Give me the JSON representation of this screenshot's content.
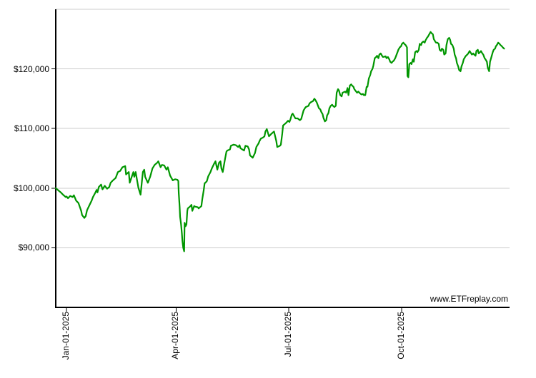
{
  "watermark": "www.ETFreplay.com",
  "chart_data": {
    "type": "line",
    "title": "",
    "xlabel": "",
    "ylabel": "",
    "x_unit": "t = fraction across time axis (late Dec 2024 to late Dec 2025)",
    "y_range": [
      80000,
      130000
    ],
    "grid": true,
    "legend_position": "none",
    "line_color": "#009600",
    "grid_color": "#cccccc",
    "axis_color": "#000000",
    "background_color": "#ffffff",
    "x_ticks": [
      {
        "label": "Jan-01-2025",
        "t": 0.024
      },
      {
        "label": "Apr-01-2025",
        "t": 0.265
      },
      {
        "label": "Jul-01-2025",
        "t": 0.513
      },
      {
        "label": "Oct-01-2025",
        "t": 0.762
      }
    ],
    "y_ticks": [
      {
        "label": "$90,000",
        "value": 90000
      },
      {
        "label": "$100,000",
        "value": 100000
      },
      {
        "label": "$110,000",
        "value": 110000
      },
      {
        "label": "$120,000",
        "value": 120000
      }
    ],
    "points": [
      [
        0.0,
        100000
      ],
      [
        0.006,
        99600
      ],
      [
        0.011,
        99300
      ],
      [
        0.016,
        98900
      ],
      [
        0.022,
        98500
      ],
      [
        0.024,
        98600
      ],
      [
        0.027,
        98300
      ],
      [
        0.032,
        98700
      ],
      [
        0.037,
        98500
      ],
      [
        0.04,
        98800
      ],
      [
        0.045,
        97900
      ],
      [
        0.05,
        97500
      ],
      [
        0.056,
        96200
      ],
      [
        0.058,
        95500
      ],
      [
        0.063,
        95000
      ],
      [
        0.066,
        95300
      ],
      [
        0.069,
        96300
      ],
      [
        0.074,
        97100
      ],
      [
        0.079,
        97900
      ],
      [
        0.082,
        98500
      ],
      [
        0.087,
        99200
      ],
      [
        0.09,
        99700
      ],
      [
        0.092,
        99300
      ],
      [
        0.095,
        100200
      ],
      [
        0.1,
        100600
      ],
      [
        0.103,
        99800
      ],
      [
        0.108,
        100400
      ],
      [
        0.113,
        99900
      ],
      [
        0.118,
        100200
      ],
      [
        0.121,
        100900
      ],
      [
        0.126,
        101300
      ],
      [
        0.132,
        101700
      ],
      [
        0.137,
        102700
      ],
      [
        0.142,
        102900
      ],
      [
        0.147,
        103500
      ],
      [
        0.153,
        103700
      ],
      [
        0.155,
        102300
      ],
      [
        0.161,
        102700
      ],
      [
        0.163,
        100900
      ],
      [
        0.171,
        102700
      ],
      [
        0.173,
        101900
      ],
      [
        0.176,
        102700
      ],
      [
        0.182,
        100100
      ],
      [
        0.187,
        98900
      ],
      [
        0.192,
        102700
      ],
      [
        0.195,
        103100
      ],
      [
        0.197,
        101900
      ],
      [
        0.203,
        100900
      ],
      [
        0.208,
        101900
      ],
      [
        0.213,
        103300
      ],
      [
        0.218,
        103900
      ],
      [
        0.224,
        104300
      ],
      [
        0.226,
        104500
      ],
      [
        0.231,
        103500
      ],
      [
        0.234,
        103900
      ],
      [
        0.239,
        103800
      ],
      [
        0.244,
        103100
      ],
      [
        0.247,
        103500
      ],
      [
        0.252,
        102100
      ],
      [
        0.258,
        101300
      ],
      [
        0.263,
        101500
      ],
      [
        0.268,
        101400
      ],
      [
        0.27,
        101200
      ],
      [
        0.271,
        99200
      ],
      [
        0.273,
        96800
      ],
      [
        0.274,
        95200
      ],
      [
        0.276,
        94000
      ],
      [
        0.278,
        92400
      ],
      [
        0.279,
        91200
      ],
      [
        0.281,
        90000
      ],
      [
        0.283,
        89400
      ],
      [
        0.284,
        94200
      ],
      [
        0.286,
        93600
      ],
      [
        0.288,
        93900
      ],
      [
        0.29,
        96200
      ],
      [
        0.291,
        96600
      ],
      [
        0.294,
        96800
      ],
      [
        0.297,
        97000
      ],
      [
        0.299,
        97200
      ],
      [
        0.301,
        96200
      ],
      [
        0.305,
        97000
      ],
      [
        0.307,
        96900
      ],
      [
        0.313,
        96800
      ],
      [
        0.315,
        96600
      ],
      [
        0.321,
        97000
      ],
      [
        0.323,
        98200
      ],
      [
        0.326,
        99600
      ],
      [
        0.328,
        100800
      ],
      [
        0.331,
        101000
      ],
      [
        0.333,
        101200
      ],
      [
        0.336,
        102000
      ],
      [
        0.341,
        102700
      ],
      [
        0.344,
        103300
      ],
      [
        0.349,
        104100
      ],
      [
        0.352,
        104500
      ],
      [
        0.356,
        103100
      ],
      [
        0.36,
        104300
      ],
      [
        0.363,
        104500
      ],
      [
        0.365,
        103300
      ],
      [
        0.368,
        102700
      ],
      [
        0.373,
        104900
      ],
      [
        0.376,
        106100
      ],
      [
        0.378,
        106300
      ],
      [
        0.384,
        106500
      ],
      [
        0.386,
        107100
      ],
      [
        0.392,
        107300
      ],
      [
        0.397,
        107200
      ],
      [
        0.402,
        106900
      ],
      [
        0.405,
        107200
      ],
      [
        0.407,
        106700
      ],
      [
        0.415,
        106300
      ],
      [
        0.418,
        107100
      ],
      [
        0.423,
        107000
      ],
      [
        0.426,
        106500
      ],
      [
        0.428,
        105500
      ],
      [
        0.434,
        105100
      ],
      [
        0.439,
        105900
      ],
      [
        0.442,
        106900
      ],
      [
        0.447,
        107500
      ],
      [
        0.449,
        107900
      ],
      [
        0.452,
        108300
      ],
      [
        0.457,
        108500
      ],
      [
        0.46,
        108700
      ],
      [
        0.462,
        109500
      ],
      [
        0.465,
        109900
      ],
      [
        0.47,
        108700
      ],
      [
        0.475,
        109100
      ],
      [
        0.481,
        109500
      ],
      [
        0.486,
        107900
      ],
      [
        0.488,
        106900
      ],
      [
        0.494,
        107100
      ],
      [
        0.496,
        107300
      ],
      [
        0.499,
        109100
      ],
      [
        0.501,
        110500
      ],
      [
        0.504,
        110700
      ],
      [
        0.507,
        110900
      ],
      [
        0.512,
        111300
      ],
      [
        0.515,
        111100
      ],
      [
        0.517,
        111500
      ],
      [
        0.52,
        112300
      ],
      [
        0.522,
        112500
      ],
      [
        0.525,
        112100
      ],
      [
        0.528,
        111700
      ],
      [
        0.533,
        111700
      ],
      [
        0.538,
        111400
      ],
      [
        0.541,
        111600
      ],
      [
        0.546,
        113000
      ],
      [
        0.549,
        113400
      ],
      [
        0.551,
        113600
      ],
      [
        0.557,
        113800
      ],
      [
        0.559,
        114200
      ],
      [
        0.562,
        114400
      ],
      [
        0.567,
        114600
      ],
      [
        0.57,
        115000
      ],
      [
        0.572,
        114800
      ],
      [
        0.575,
        114400
      ],
      [
        0.577,
        114000
      ],
      [
        0.58,
        113400
      ],
      [
        0.583,
        113200
      ],
      [
        0.585,
        112800
      ],
      [
        0.588,
        112400
      ],
      [
        0.59,
        111800
      ],
      [
        0.593,
        111200
      ],
      [
        0.596,
        111400
      ],
      [
        0.598,
        112200
      ],
      [
        0.601,
        112600
      ],
      [
        0.603,
        113400
      ],
      [
        0.606,
        113800
      ],
      [
        0.609,
        114000
      ],
      [
        0.611,
        113800
      ],
      [
        0.614,
        113600
      ],
      [
        0.617,
        113800
      ],
      [
        0.619,
        116000
      ],
      [
        0.622,
        116600
      ],
      [
        0.624,
        116400
      ],
      [
        0.627,
        115600
      ],
      [
        0.63,
        115400
      ],
      [
        0.632,
        116000
      ],
      [
        0.638,
        116200
      ],
      [
        0.64,
        116000
      ],
      [
        0.643,
        116800
      ],
      [
        0.645,
        115600
      ],
      [
        0.648,
        117200
      ],
      [
        0.651,
        117400
      ],
      [
        0.653,
        117200
      ],
      [
        0.656,
        117000
      ],
      [
        0.658,
        116600
      ],
      [
        0.664,
        116000
      ],
      [
        0.667,
        116200
      ],
      [
        0.669,
        116000
      ],
      [
        0.672,
        115800
      ],
      [
        0.674,
        115700
      ],
      [
        0.677,
        115800
      ],
      [
        0.679,
        115600
      ],
      [
        0.682,
        115600
      ],
      [
        0.685,
        117000
      ],
      [
        0.687,
        117000
      ],
      [
        0.69,
        118400
      ],
      [
        0.693,
        119000
      ],
      [
        0.695,
        119600
      ],
      [
        0.698,
        120000
      ],
      [
        0.7,
        120600
      ],
      [
        0.703,
        121800
      ],
      [
        0.706,
        122000
      ],
      [
        0.708,
        122200
      ],
      [
        0.711,
        121800
      ],
      [
        0.713,
        122400
      ],
      [
        0.716,
        122600
      ],
      [
        0.719,
        122200
      ],
      [
        0.721,
        122000
      ],
      [
        0.727,
        122100
      ],
      [
        0.729,
        121800
      ],
      [
        0.732,
        122000
      ],
      [
        0.735,
        121600
      ],
      [
        0.737,
        121200
      ],
      [
        0.74,
        121000
      ],
      [
        0.742,
        121200
      ],
      [
        0.745,
        121400
      ],
      [
        0.748,
        121800
      ],
      [
        0.75,
        122200
      ],
      [
        0.753,
        122800
      ],
      [
        0.755,
        123200
      ],
      [
        0.758,
        123600
      ],
      [
        0.761,
        123800
      ],
      [
        0.763,
        124200
      ],
      [
        0.766,
        124400
      ],
      [
        0.768,
        124200
      ],
      [
        0.771,
        124000
      ],
      [
        0.774,
        123600
      ],
      [
        0.775,
        118800
      ],
      [
        0.777,
        118600
      ],
      [
        0.779,
        120800
      ],
      [
        0.782,
        121000
      ],
      [
        0.784,
        120800
      ],
      [
        0.787,
        121600
      ],
      [
        0.789,
        121200
      ],
      [
        0.792,
        122800
      ],
      [
        0.795,
        123000
      ],
      [
        0.797,
        122800
      ],
      [
        0.8,
        123200
      ],
      [
        0.802,
        124200
      ],
      [
        0.805,
        124000
      ],
      [
        0.807,
        124400
      ],
      [
        0.81,
        124600
      ],
      [
        0.813,
        124400
      ],
      [
        0.815,
        124800
      ],
      [
        0.818,
        125200
      ],
      [
        0.82,
        125400
      ],
      [
        0.823,
        125800
      ],
      [
        0.826,
        126200
      ],
      [
        0.828,
        126000
      ],
      [
        0.831,
        125800
      ],
      [
        0.833,
        125000
      ],
      [
        0.836,
        124600
      ],
      [
        0.838,
        124400
      ],
      [
        0.841,
        124400
      ],
      [
        0.844,
        124200
      ],
      [
        0.846,
        123200
      ],
      [
        0.849,
        123000
      ],
      [
        0.851,
        123400
      ],
      [
        0.854,
        123200
      ],
      [
        0.856,
        122400
      ],
      [
        0.859,
        122600
      ],
      [
        0.861,
        124000
      ],
      [
        0.864,
        125000
      ],
      [
        0.867,
        125200
      ],
      [
        0.869,
        124900
      ],
      [
        0.871,
        124200
      ],
      [
        0.874,
        124000
      ],
      [
        0.877,
        123400
      ],
      [
        0.879,
        122400
      ],
      [
        0.882,
        121800
      ],
      [
        0.884,
        121000
      ],
      [
        0.887,
        120400
      ],
      [
        0.889,
        119800
      ],
      [
        0.892,
        119600
      ],
      [
        0.894,
        120400
      ],
      [
        0.897,
        121000
      ],
      [
        0.899,
        121600
      ],
      [
        0.902,
        122000
      ],
      [
        0.904,
        122200
      ],
      [
        0.907,
        122400
      ],
      [
        0.909,
        122600
      ],
      [
        0.912,
        123000
      ],
      [
        0.917,
        122400
      ],
      [
        0.92,
        122600
      ],
      [
        0.922,
        122400
      ],
      [
        0.925,
        122200
      ],
      [
        0.927,
        123000
      ],
      [
        0.93,
        123200
      ],
      [
        0.932,
        122600
      ],
      [
        0.935,
        122800
      ],
      [
        0.937,
        123000
      ],
      [
        0.94,
        122600
      ],
      [
        0.942,
        122400
      ],
      [
        0.945,
        121800
      ],
      [
        0.947,
        121600
      ],
      [
        0.95,
        121200
      ],
      [
        0.952,
        120200
      ],
      [
        0.955,
        119600
      ],
      [
        0.957,
        121200
      ],
      [
        0.96,
        122000
      ],
      [
        0.963,
        122800
      ],
      [
        0.965,
        123200
      ],
      [
        0.968,
        123400
      ],
      [
        0.97,
        123800
      ],
      [
        0.972,
        124000
      ],
      [
        0.975,
        124400
      ],
      [
        0.978,
        124200
      ],
      [
        0.98,
        124000
      ],
      [
        0.983,
        123800
      ],
      [
        0.985,
        123600
      ],
      [
        0.988,
        123400
      ]
    ]
  }
}
